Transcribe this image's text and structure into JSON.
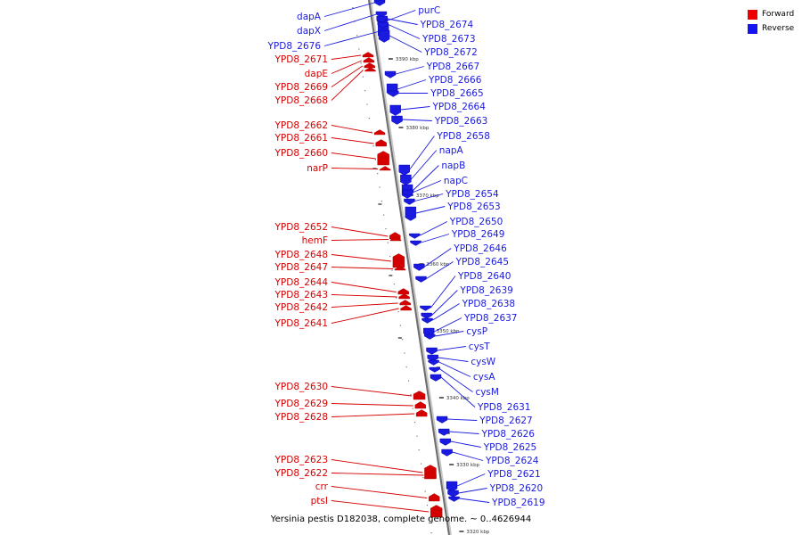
{
  "legend": {
    "forward_label": "Forward",
    "reverse_label": "Reverse",
    "forward_color": "#ee0000",
    "reverse_color": "#1414f0"
  },
  "caption": "Yersinia pestis D182038, complete genome. ~ 0..4626944",
  "strand_colors": {
    "forward": "#d40000",
    "reverse": "#1a1ae0"
  },
  "scale_labels": [
    "3390 kbp",
    "3380 kbp",
    "3370 kbp",
    "3360 kbp",
    "3350 kbp",
    "3340 kbp",
    "3330 kbp",
    "3320 kbp"
  ],
  "forward_genes": [
    "YPD8_2671",
    "dapE",
    "YPD8_2669",
    "YPD8_2668",
    "YPD8_2662",
    "YPD8_2661",
    "YPD8_2660",
    "narP",
    "YPD8_2652",
    "hemF",
    "YPD8_2648",
    "YPD8_2647",
    "YPD8_2644",
    "YPD8_2643",
    "YPD8_2642",
    "YPD8_2641",
    "YPD8_2630",
    "YPD8_2629",
    "YPD8_2628",
    "YPD8_2623",
    "YPD8_2622",
    "crr",
    "ptsI"
  ],
  "reverse_genes": [
    "dapA",
    "dapX",
    "YPD8_2676",
    "purC",
    "YPD8_2674",
    "YPD8_2673",
    "YPD8_2672",
    "YPD8_2667",
    "YPD8_2666",
    "YPD8_2665",
    "YPD8_2664",
    "YPD8_2663",
    "YPD8_2658",
    "napA",
    "napB",
    "napC",
    "YPD8_2654",
    "YPD8_2653",
    "YPD8_2650",
    "YPD8_2649",
    "YPD8_2646",
    "YPD8_2645",
    "YPD8_2640",
    "YPD8_2639",
    "YPD8_2638",
    "YPD8_2637",
    "cysP",
    "cysT",
    "cysW",
    "cysA",
    "cysM",
    "YPD8_2631",
    "YPD8_2627",
    "YPD8_2626",
    "YPD8_2625",
    "YPD8_2624",
    "YPD8_2621",
    "YPD8_2620",
    "YPD8_2619"
  ]
}
